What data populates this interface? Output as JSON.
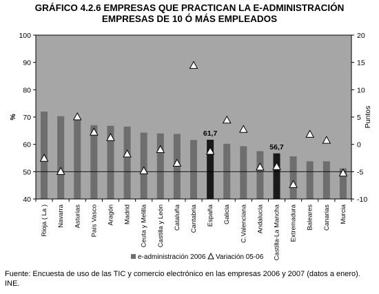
{
  "header": {
    "title_line1": "GRÁFICO 4.2.6 EMPRESAS QUE PRACTICAN LA E-ADMINISTRACIÓN",
    "title_line2": "EMPRESAS DE 10 Ó MÁS EMPLEADOS"
  },
  "footer": {
    "source": "Fuente: Encuesta de uso de las TIC y comercio electrónico en las empresas 2006 y 2007 (datos a enero). INE."
  },
  "colors": {
    "plot_bg": "#a6a6a6",
    "bar": "#6e6e6e",
    "bar_highlight": "#1a1a1a",
    "marker_fill": "#ffffff",
    "marker_stroke": "#000000"
  },
  "chart_data": {
    "type": "bar",
    "categories": [
      "Rioja ( La )",
      "Navarra",
      "Asturias",
      "País Vasco",
      "Aragón",
      "Madrid",
      "Ceuta y Melilla",
      "Castilla y León",
      "Cataluña",
      "Cantabria",
      "España",
      "Galicia",
      "C.Valenciana",
      "Andalucía",
      "Castilla-La Mancha",
      "Extremadura",
      "Baleares",
      "Canarias",
      "Murcia"
    ],
    "highlighted": [
      "España",
      "Castilla-La Mancha"
    ],
    "series": [
      {
        "name": "e-administración 2006",
        "type": "bar",
        "axis": "left",
        "values": [
          72.0,
          70.3,
          69.5,
          67.0,
          66.8,
          66.5,
          64.3,
          64.0,
          63.8,
          61.6,
          61.7,
          60.2,
          59.3,
          57.5,
          56.7,
          55.6,
          53.8,
          53.8,
          51.2
        ]
      },
      {
        "name": "Variación 05-06",
        "type": "scatter",
        "marker": "triangle",
        "axis": "right",
        "values": [
          -2.6,
          -5.0,
          5.0,
          2.2,
          1.2,
          -1.8,
          -4.9,
          -1.0,
          -3.5,
          14.4,
          -1.3,
          4.4,
          2.7,
          -4.2,
          -4.1,
          -7.4,
          1.8,
          0.7,
          -5.3
        ]
      }
    ],
    "data_labels": [
      {
        "category": "España",
        "text": "61,7"
      },
      {
        "category": "Castilla-La Mancha",
        "text": "56,7"
      }
    ],
    "y_left": {
      "label": "%",
      "min": 40,
      "max": 100,
      "ticks": [
        "40",
        "50",
        "60",
        "70",
        "80",
        "90",
        "100"
      ],
      "reference_line": 50
    },
    "y_right": {
      "label": "Puntos",
      "min": -10,
      "max": 20,
      "ticks": [
        "-10",
        "-5",
        "0",
        "5",
        "10",
        "15",
        "20"
      ]
    },
    "grid": false,
    "legend": "bottom",
    "legend_labels": {
      "bars": "e-administración 2006",
      "markers": "Variación 05-06"
    }
  }
}
